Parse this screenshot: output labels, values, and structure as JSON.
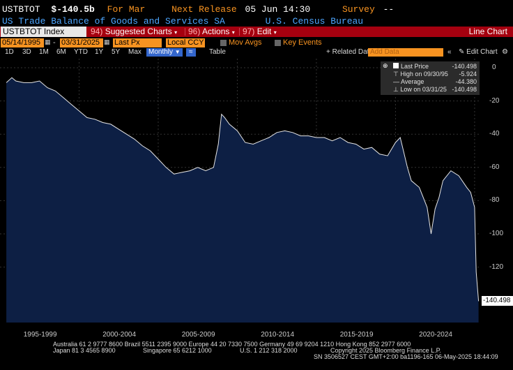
{
  "header": {
    "ticker": "USTBTOT",
    "value": "$-140.5b",
    "period": "For Mar",
    "next_release_label": "Next Release",
    "next_release": "05 Jun 14:30",
    "survey_label": "Survey",
    "survey_value": "--",
    "description": "US Trade Balance of Goods and Services SA",
    "source": "U.S. Census Bureau"
  },
  "toolbar": {
    "security": "USTBTOT Index",
    "suggested_num": "94)",
    "suggested": "Suggested Charts",
    "actions_num": "96)",
    "actions": "Actions",
    "edit_num": "97)",
    "edit": "Edit",
    "chart_type": "Line Chart"
  },
  "controls": {
    "start_date": "05/14/1995",
    "end_date": "03/31/2025",
    "field": "Last Px",
    "currency": "Local CCY",
    "mov_avgs": "Mov Avgs",
    "key_events": "Key Events"
  },
  "tabs": {
    "periods": [
      "1D",
      "3D",
      "1M",
      "6M",
      "YTD",
      "1Y",
      "5Y",
      "Max"
    ],
    "frequency": "Monthly",
    "table": "Table",
    "related_data": "+ Related Dat",
    "add_data_placeholder": "Add Data",
    "edit_chart": "Edit Chart"
  },
  "legend": {
    "last_price_label": "Last Price",
    "last_price": "-140.498",
    "high_label": "High on 09/30/95",
    "high": "-5.924",
    "average_label": "Average",
    "average": "-44.380",
    "low_label": "Low on 03/31/25",
    "low": "-140.498"
  },
  "last_value_label": "-140.498",
  "footer": {
    "line1": "Australia 61 2 9777 8600 Brazil 5511 2395 9000 Europe 44 20 7330 7500 Germany 49 69 9204 1210 Hong Kong 852 2977 6000",
    "line2a": "Japan 81 3 4565 8900",
    "line2b": "Singapore 65 6212 1000",
    "line2c": "U.S. 1 212 318 2000",
    "line2d": "Copyright 2025 Bloomberg Finance L.P.",
    "line3": "SN 3506527 CEST GMT+2:00 ba1196-165 06-May-2025 18:44:09"
  },
  "colors": {
    "background": "#000000",
    "area_fill": "#0d1f44",
    "line": "#e6e6e6",
    "accent_orange": "#f79321",
    "bar_red": "#a5000f"
  },
  "chart_data": {
    "type": "area",
    "xlabel": "",
    "ylabel": "",
    "ylim": [
      -150,
      0
    ],
    "yticks": [
      0,
      -20,
      -40,
      -60,
      -80,
      -100,
      -120
    ],
    "xticks": [
      "1995-1999",
      "2000-2004",
      "2005-2009",
      "2010-2014",
      "2015-2019",
      "2020-2024"
    ],
    "grid": true,
    "legend_position": "top-right",
    "series": [
      {
        "name": "Last Price",
        "x": [
          1995.4,
          1995.75,
          1996.0,
          1996.5,
          1997.0,
          1997.5,
          1998.0,
          1998.5,
          1999.0,
          1999.5,
          2000.0,
          2000.5,
          2001.0,
          2001.5,
          2002.0,
          2002.5,
          2003.0,
          2003.5,
          2004.0,
          2004.5,
          2005.0,
          2005.5,
          2006.0,
          2006.5,
          2007.0,
          2007.5,
          2008.0,
          2008.5,
          2008.8,
          2009.0,
          2009.2,
          2009.5,
          2010.0,
          2010.5,
          2011.0,
          2011.5,
          2012.0,
          2012.5,
          2013.0,
          2013.5,
          2014.0,
          2014.5,
          2015.0,
          2015.5,
          2016.0,
          2016.5,
          2017.0,
          2017.5,
          2018.0,
          2018.5,
          2019.0,
          2019.5,
          2020.0,
          2020.3,
          2020.5,
          2020.75,
          2021.0,
          2021.5,
          2022.0,
          2022.25,
          2022.5,
          2022.75,
          2023.0,
          2023.5,
          2024.0,
          2024.5,
          2024.75,
          2025.0,
          2025.1,
          2025.25
        ],
        "y": [
          -9,
          -6,
          -8,
          -9,
          -9,
          -8,
          -12,
          -14,
          -18,
          -22,
          -26,
          -30,
          -31,
          -33,
          -34,
          -37,
          -40,
          -43,
          -47,
          -50,
          -55,
          -60,
          -64,
          -63,
          -62,
          -60,
          -62,
          -60,
          -46,
          -28,
          -30,
          -34,
          -38,
          -45,
          -46,
          -44,
          -42,
          -39,
          -38,
          -39,
          -41,
          -41,
          -42,
          -42,
          -44,
          -42,
          -45,
          -46,
          -49,
          -48,
          -52,
          -53,
          -45,
          -42,
          -50,
          -60,
          -68,
          -72,
          -84,
          -100,
          -85,
          -78,
          -68,
          -62,
          -65,
          -72,
          -75,
          -84,
          -123,
          -140.5
        ]
      }
    ]
  }
}
